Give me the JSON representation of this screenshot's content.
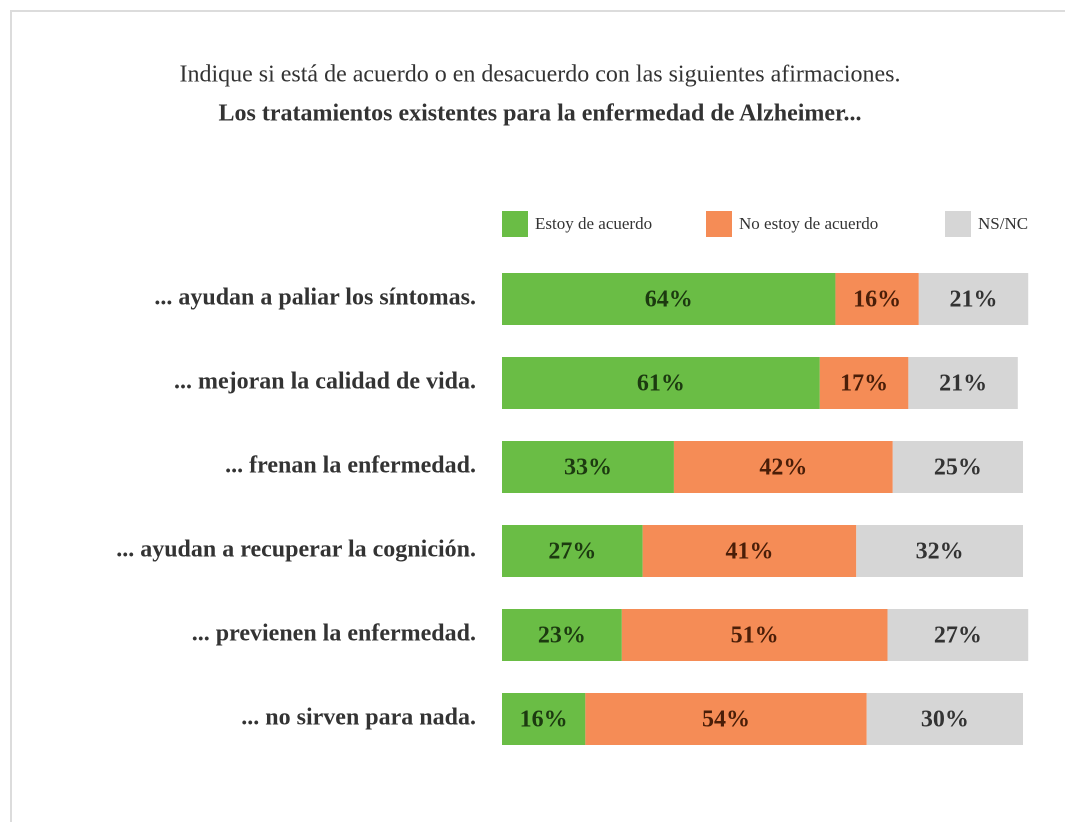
{
  "chart_data": {
    "type": "stacked_barh",
    "title": "Indique si está de acuerdo o en desacuerdo con las siguientes afirmaciones.",
    "subtitle": "Los tratamientos existentes para la enfermedad de Alzheimer...",
    "categories": [
      "... ayudan a paliar los síntomas.",
      "... mejoran la calidad de vida.",
      "... frenan la enfermedad.",
      "... ayudan a recuperar la cognición.",
      "... previenen la enfermedad.",
      "... no sirven para nada."
    ],
    "series": [
      {
        "name": "Estoy de acuerdo",
        "color": "#6abd45",
        "label_color": "#1c3a10",
        "values": [
          64,
          61,
          33,
          27,
          23,
          16
        ],
        "value_labels": [
          "64%",
          "61%",
          "33%",
          "27%",
          "23%",
          "16%"
        ]
      },
      {
        "name": "No estoy de acuerdo",
        "color": "#f58c56",
        "label_color": "#4a1e08",
        "values": [
          16,
          17,
          42,
          41,
          51,
          54
        ],
        "value_labels": [
          "16%",
          "17%",
          "42%",
          "41%",
          "51%",
          "54%"
        ]
      },
      {
        "name": "NS/NC",
        "color": "#d6d6d6",
        "label_color": "#333333",
        "values": [
          21,
          21,
          25,
          32,
          27,
          30
        ],
        "value_labels": [
          "21%",
          "21%",
          "25%",
          "32%",
          "27%",
          "30%"
        ]
      }
    ],
    "legend": "top"
  }
}
